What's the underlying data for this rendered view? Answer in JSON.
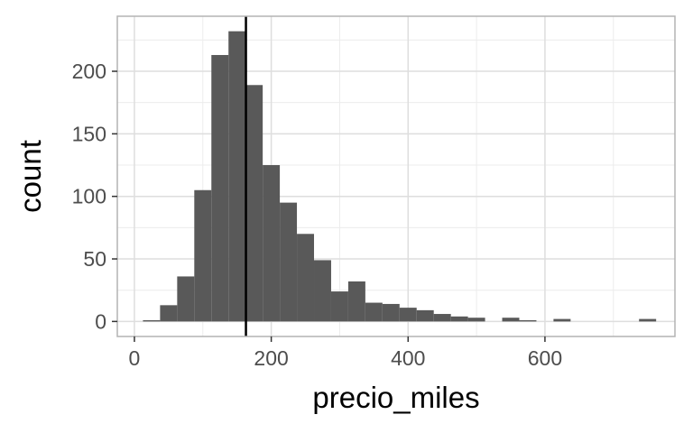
{
  "chart_data": {
    "type": "bar",
    "title": "",
    "xlabel": "precio_miles",
    "ylabel": "count",
    "xlim": [
      -25,
      790
    ],
    "ylim": [
      -12,
      244
    ],
    "x_ticks": [
      0,
      200,
      400,
      600
    ],
    "y_ticks": [
      0,
      50,
      100,
      150,
      200
    ],
    "grid": true,
    "bin_width": 25,
    "bin_starts": [
      12.5,
      37.5,
      62.5,
      87.5,
      112.5,
      137.5,
      162.5,
      187.5,
      212.5,
      237.5,
      262.5,
      287.5,
      312.5,
      337.5,
      362.5,
      387.5,
      412.5,
      437.5,
      462.5,
      487.5,
      512.5,
      537.5,
      562.5,
      587.5,
      612.5,
      637.5,
      662.5,
      687.5,
      712.5,
      737.5
    ],
    "values": [
      1,
      13,
      36,
      105,
      213,
      232,
      189,
      125,
      95,
      70,
      49,
      24,
      32,
      15,
      14,
      11,
      9,
      6,
      4,
      3,
      0,
      3,
      1,
      0,
      2,
      0,
      0,
      0,
      0,
      2
    ],
    "vline_x": 163,
    "bar_color": "#595959",
    "vline_color": "#000000",
    "panel_border_color": "#b3b3b3",
    "grid_major_color": "#dedede",
    "grid_minor_color": "#ececec"
  }
}
